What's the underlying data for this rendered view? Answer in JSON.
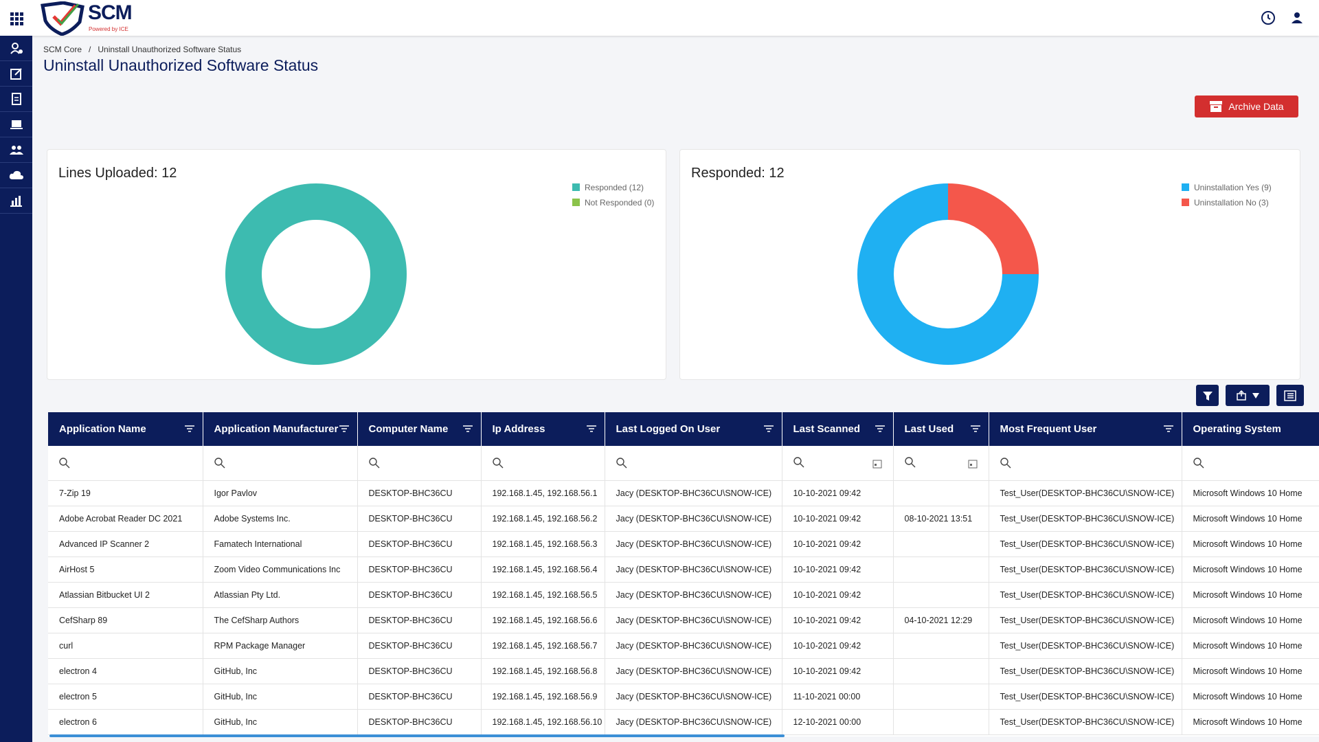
{
  "header": {
    "logo": "SCM",
    "tagline": "Powered by ICE"
  },
  "breadcrumb": [
    "SCM Core",
    "/",
    "Uninstall Unauthorized Software Status"
  ],
  "title": "Uninstall Unauthorized Software Status",
  "archive_button": "Archive Data",
  "charts": [
    {
      "type": "donut",
      "title": "Lines Uploaded: 12",
      "segments": [
        {
          "label": "Responded (12)",
          "value": 12,
          "color": "#3dbbb0"
        },
        {
          "label": "Not Responded (0)",
          "value": 0,
          "color": "#8bc34a"
        }
      ]
    },
    {
      "type": "donut",
      "title": "Responded: 12",
      "segments": [
        {
          "label": "Uninstallation Yes (9)",
          "value": 9,
          "color": "#1fb0f2"
        },
        {
          "label": "Uninstallation No (3)",
          "value": 3,
          "color": "#f4574b"
        }
      ]
    }
  ],
  "table": {
    "columns": [
      "Application Name",
      "Application Manufacturer",
      "Computer Name",
      "Ip Address",
      "Last Logged On User",
      "Last Scanned",
      "Last Used",
      "Most Frequent User",
      "Operating System"
    ],
    "rows": [
      [
        "7-Zip 19",
        "Igor Pavlov",
        "DESKTOP-BHC36CU",
        "192.168.1.45, 192.168.56.1",
        "Jacy (DESKTOP-BHC36CU\\SNOW-ICE)",
        "10-10-2021 09:42",
        null,
        "Test_User(DESKTOP-BHC36CU\\SNOW-ICE)",
        "Microsoft Windows 10 Home"
      ],
      [
        "Adobe Acrobat Reader DC 2021",
        "Adobe Systems Inc.",
        "DESKTOP-BHC36CU",
        "192.168.1.45, 192.168.56.2",
        "Jacy (DESKTOP-BHC36CU\\SNOW-ICE)",
        "10-10-2021 09:42",
        "08-10-2021 13:51",
        "Test_User(DESKTOP-BHC36CU\\SNOW-ICE)",
        "Microsoft Windows 10 Home"
      ],
      [
        "Advanced IP Scanner 2",
        "Famatech International",
        "DESKTOP-BHC36CU",
        "192.168.1.45, 192.168.56.3",
        "Jacy (DESKTOP-BHC36CU\\SNOW-ICE)",
        "10-10-2021 09:42",
        null,
        "Test_User(DESKTOP-BHC36CU\\SNOW-ICE)",
        "Microsoft Windows 10 Home"
      ],
      [
        "AirHost 5",
        "Zoom Video Communications Inc",
        "DESKTOP-BHC36CU",
        "192.168.1.45, 192.168.56.4",
        "Jacy (DESKTOP-BHC36CU\\SNOW-ICE)",
        "10-10-2021 09:42",
        null,
        "Test_User(DESKTOP-BHC36CU\\SNOW-ICE)",
        "Microsoft Windows 10 Home"
      ],
      [
        "Atlassian Bitbucket UI 2",
        "Atlassian Pty Ltd.",
        "DESKTOP-BHC36CU",
        "192.168.1.45, 192.168.56.5",
        "Jacy (DESKTOP-BHC36CU\\SNOW-ICE)",
        "10-10-2021 09:42",
        null,
        "Test_User(DESKTOP-BHC36CU\\SNOW-ICE)",
        "Microsoft Windows 10 Home"
      ],
      [
        "CefSharp 89",
        "The CefSharp Authors",
        "DESKTOP-BHC36CU",
        "192.168.1.45, 192.168.56.6",
        "Jacy (DESKTOP-BHC36CU\\SNOW-ICE)",
        "10-10-2021 09:42",
        "04-10-2021 12:29",
        "Test_User(DESKTOP-BHC36CU\\SNOW-ICE)",
        "Microsoft Windows 10 Home"
      ],
      [
        "curl",
        "RPM Package Manager",
        "DESKTOP-BHC36CU",
        "192.168.1.45, 192.168.56.7",
        "Jacy (DESKTOP-BHC36CU\\SNOW-ICE)",
        "10-10-2021 09:42",
        null,
        "Test_User(DESKTOP-BHC36CU\\SNOW-ICE)",
        "Microsoft Windows 10 Home"
      ],
      [
        "electron 4",
        "GitHub, Inc",
        "DESKTOP-BHC36CU",
        "192.168.1.45, 192.168.56.8",
        "Jacy (DESKTOP-BHC36CU\\SNOW-ICE)",
        "10-10-2021 09:42",
        null,
        "Test_User(DESKTOP-BHC36CU\\SNOW-ICE)",
        "Microsoft Windows 10 Home"
      ],
      [
        "electron 5",
        "GitHub, Inc",
        "DESKTOP-BHC36CU",
        "192.168.1.45, 192.168.56.9",
        "Jacy (DESKTOP-BHC36CU\\SNOW-ICE)",
        "11-10-2021 00:00",
        null,
        "Test_User(DESKTOP-BHC36CU\\SNOW-ICE)",
        "Microsoft Windows 10 Home"
      ],
      [
        "electron 6",
        "GitHub, Inc",
        "DESKTOP-BHC36CU",
        "192.168.1.45, 192.168.56.10",
        "Jacy (DESKTOP-BHC36CU\\SNOW-ICE)",
        "12-10-2021 00:00",
        null,
        "Test_User(DESKTOP-BHC36CU\\SNOW-ICE)",
        "Microsoft Windows 10 Home"
      ]
    ]
  }
}
